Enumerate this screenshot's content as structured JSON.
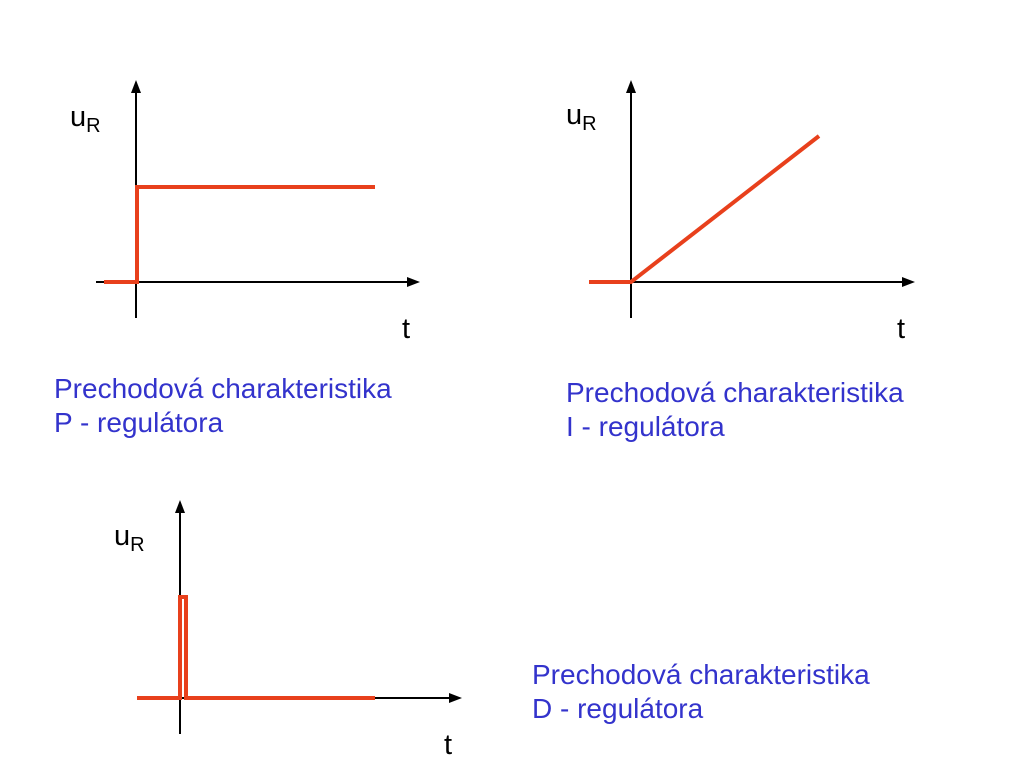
{
  "diagrams": [
    {
      "id": "p",
      "y_label": "u",
      "y_label_sub": "R",
      "x_label": "t",
      "caption_line1": "Prechodová charakteristika",
      "caption_line2": "P - regulátora"
    },
    {
      "id": "i",
      "y_label": "u",
      "y_label_sub": "R",
      "x_label": "t",
      "caption_line1": "Prechodová charakteristika",
      "caption_line2": "I - regulátora"
    },
    {
      "id": "d",
      "y_label": "u",
      "y_label_sub": "R",
      "x_label": "t",
      "caption_line1": "Prechodová charakteristika",
      "caption_line2": "D - regulátora"
    }
  ],
  "colors": {
    "signal": "#e8401c",
    "caption": "#3333cc",
    "axis": "#000000"
  }
}
